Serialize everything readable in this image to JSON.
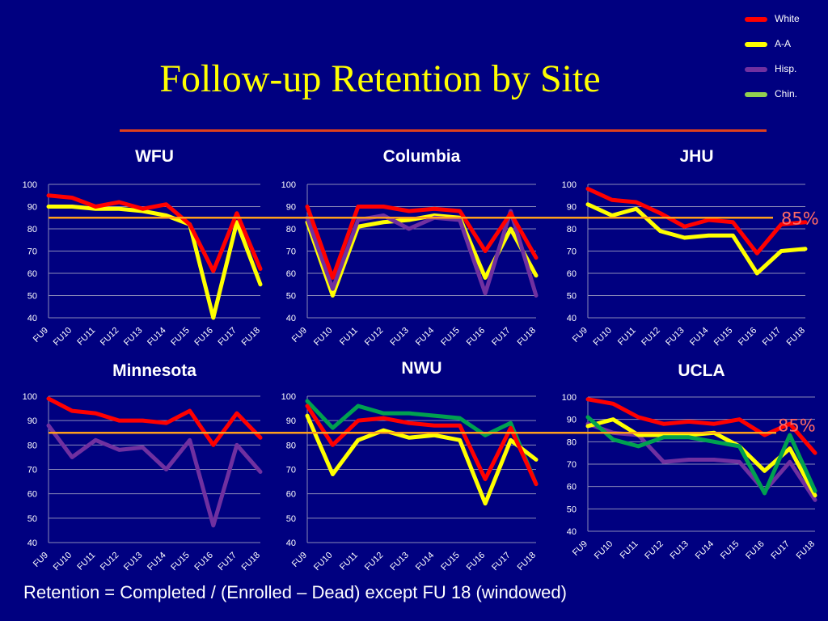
{
  "title": "Follow-up Retention by Site",
  "footnote": "Retention = Completed / (Enrolled – Dead) except FU 18 (windowed)",
  "legend": [
    {
      "label": "White",
      "color": "#ff0000"
    },
    {
      "label": "A-A",
      "color": "#ffff00"
    },
    {
      "label": "Hisp.",
      "color": "#7030a0"
    },
    {
      "label": "Chin.",
      "color": "#92d050"
    }
  ],
  "reference": {
    "value": 85,
    "label": "85%",
    "color": "#ff9f1c"
  },
  "colors": {
    "background": "#000080",
    "gridline": "#8a8ab8",
    "ref_line": "#ff9f1c",
    "title": "#ffff00",
    "rule": "#e0401c"
  },
  "chart_data": [
    {
      "type": "line",
      "title": "WFU",
      "categories": [
        "FU9",
        "FU10",
        "FU11",
        "FU12",
        "FU13",
        "FU14",
        "FU15",
        "FU16",
        "FU17",
        "FU18"
      ],
      "ylim": [
        40,
        100
      ],
      "yticks": [
        40,
        50,
        60,
        70,
        80,
        90,
        100
      ],
      "series": [
        {
          "name": "A-A",
          "color": "#ffff00",
          "values": [
            90,
            90,
            89,
            89,
            88,
            86,
            82,
            40,
            83,
            55
          ]
        },
        {
          "name": "White",
          "color": "#ff0000",
          "values": [
            95,
            94,
            90,
            92,
            89,
            91,
            82,
            61,
            87,
            62
          ]
        }
      ]
    },
    {
      "type": "line",
      "title": "Columbia",
      "categories": [
        "FU9",
        "FU10",
        "FU11",
        "FU12",
        "FU13",
        "FU14",
        "FU15",
        "FU16",
        "FU17",
        "FU18"
      ],
      "ylim": [
        40,
        100
      ],
      "yticks": [
        40,
        50,
        60,
        70,
        80,
        90,
        100
      ],
      "series": [
        {
          "name": "A-A",
          "color": "#ffff00",
          "values": [
            83,
            50,
            81,
            83,
            84,
            86,
            85,
            58,
            80,
            59
          ]
        },
        {
          "name": "Hisp.",
          "color": "#7030a0",
          "values": [
            85,
            53,
            84,
            86,
            80,
            85,
            84,
            51,
            88,
            50
          ]
        },
        {
          "name": "White",
          "color": "#ff0000",
          "values": [
            90,
            58,
            90,
            90,
            88,
            89,
            88,
            70,
            87,
            67
          ]
        }
      ]
    },
    {
      "type": "line",
      "title": "JHU",
      "categories": [
        "FU9",
        "FU10",
        "FU11",
        "FU12",
        "FU13",
        "FU14",
        "FU15",
        "FU16",
        "FU17",
        "FU18"
      ],
      "ylim": [
        40,
        100
      ],
      "yticks": [
        40,
        50,
        60,
        70,
        80,
        90,
        100
      ],
      "series": [
        {
          "name": "A-A",
          "color": "#ffff00",
          "values": [
            91,
            86,
            89,
            79,
            76,
            77,
            77,
            60,
            70,
            71
          ]
        },
        {
          "name": "White",
          "color": "#ff0000",
          "values": [
            98,
            93,
            92,
            87,
            81,
            84,
            83,
            69,
            82,
            83
          ]
        }
      ]
    },
    {
      "type": "line",
      "title": "Minnesota",
      "categories": [
        "FU9",
        "FU10",
        "FU11",
        "FU12",
        "FU13",
        "FU14",
        "FU15",
        "FU16",
        "FU17",
        "FU18"
      ],
      "ylim": [
        40,
        100
      ],
      "yticks": [
        40,
        50,
        60,
        70,
        80,
        90,
        100
      ],
      "series": [
        {
          "name": "Hisp.",
          "color": "#7030a0",
          "values": [
            88,
            75,
            82,
            78,
            79,
            70,
            82,
            47,
            80,
            69
          ]
        },
        {
          "name": "White",
          "color": "#ff0000",
          "values": [
            99,
            94,
            93,
            90,
            90,
            89,
            94,
            80,
            93,
            83
          ]
        }
      ]
    },
    {
      "type": "line",
      "title": "NWU",
      "categories": [
        "FU9",
        "FU10",
        "FU11",
        "FU12",
        "FU13",
        "FU14",
        "FU15",
        "FU16",
        "FU17",
        "FU18"
      ],
      "ylim": [
        40,
        100
      ],
      "yticks": [
        40,
        50,
        60,
        70,
        80,
        90,
        100
      ],
      "series": [
        {
          "name": "Chin.",
          "color": "#00a050",
          "values": [
            98,
            87,
            96,
            93,
            93,
            92,
            91,
            84,
            89,
            64
          ]
        },
        {
          "name": "A-A",
          "color": "#ffff00",
          "values": [
            92,
            68,
            82,
            86,
            83,
            84,
            82,
            56,
            82,
            74
          ]
        },
        {
          "name": "White",
          "color": "#ff0000",
          "values": [
            96,
            80,
            90,
            91,
            89,
            88,
            88,
            66,
            87,
            64
          ]
        }
      ]
    },
    {
      "type": "line",
      "title": "UCLA",
      "categories": [
        "FU9",
        "FU10",
        "FU11",
        "FU12",
        "FU13",
        "FU14",
        "FU15",
        "FU16",
        "FU17",
        "FU18"
      ],
      "ylim": [
        40,
        100
      ],
      "yticks": [
        40,
        50,
        60,
        70,
        80,
        90,
        100
      ],
      "series": [
        {
          "name": "Hisp.",
          "color": "#7030a0",
          "values": [
            88,
            84,
            83,
            71,
            72,
            72,
            71,
            58,
            71,
            54
          ]
        },
        {
          "name": "A-A",
          "color": "#ffff00",
          "values": [
            87,
            90,
            83,
            83,
            83,
            84,
            78,
            67,
            77,
            56
          ]
        },
        {
          "name": "Chin.",
          "color": "#00a050",
          "values": [
            91,
            81,
            78,
            82,
            82,
            80,
            78,
            57,
            83,
            58
          ]
        },
        {
          "name": "White",
          "color": "#ff0000",
          "values": [
            99,
            97,
            91,
            88,
            89,
            88,
            90,
            83,
            88,
            75
          ]
        }
      ]
    }
  ]
}
